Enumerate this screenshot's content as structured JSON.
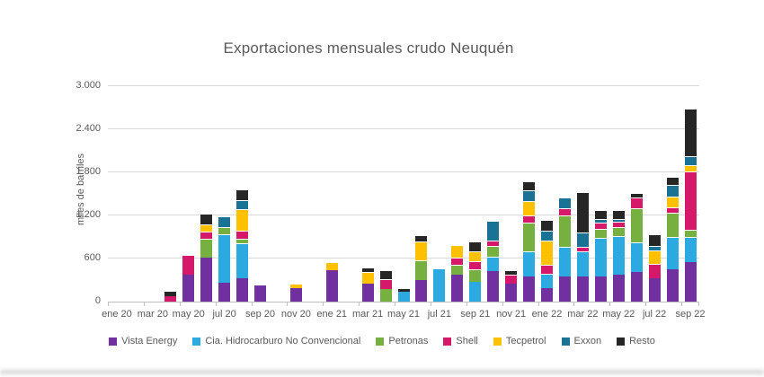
{
  "title": "Exportaciones mensuales crudo Neuquén",
  "colors": {
    "grid": "#d9d9d9",
    "axis": "#bfbfbf",
    "text": "#595959"
  },
  "chart_data": {
    "type": "bar",
    "subtype": "stacked",
    "title": "Exportaciones mensuales crudo Neuquén",
    "xlabel": "",
    "ylabel": "miles de barriles",
    "ylim": [
      0,
      3000
    ],
    "ytick_step": 600,
    "ytick_labels": [
      "0",
      "600",
      "1.200",
      "1.800",
      "2.400",
      "3.000"
    ],
    "grid": true,
    "legend_position": "bottom",
    "x_label_every": 2,
    "categories": [
      "ene 20",
      "feb 20",
      "mar 20",
      "abr 20",
      "may 20",
      "jun 20",
      "jul 20",
      "ago 20",
      "sep 20",
      "oct 20",
      "nov 20",
      "dic 20",
      "ene 21",
      "feb 21",
      "mar 21",
      "abr 21",
      "may 21",
      "jun 21",
      "jul 21",
      "ago 21",
      "sep 21",
      "oct 21",
      "nov 21",
      "dic 21",
      "ene 22",
      "feb 22",
      "mar 22",
      "abr 22",
      "may 22",
      "jun 22",
      "jul 22",
      "ago 22",
      "sep 22"
    ],
    "series": [
      {
        "name": "Vista Energy",
        "color": "#7030a0",
        "values": [
          0,
          0,
          0,
          0,
          380,
          610,
          260,
          325,
          220,
          0,
          190,
          0,
          440,
          0,
          250,
          0,
          0,
          305,
          0,
          370,
          0,
          430,
          250,
          350,
          185,
          355,
          355,
          355,
          375,
          410,
          330,
          450,
          550
        ]
      },
      {
        "name": "Cia.  Hidrocarburo No Convencional",
        "color": "#2ba9e0",
        "values": [
          0,
          0,
          0,
          0,
          0,
          0,
          680,
          495,
          0,
          0,
          0,
          0,
          0,
          0,
          0,
          0,
          140,
          0,
          445,
          0,
          270,
          190,
          0,
          350,
          205,
          415,
          350,
          540,
          540,
          415,
          0,
          455,
          350
        ]
      },
      {
        "name": "Petronas",
        "color": "#76b041",
        "values": [
          0,
          0,
          0,
          0,
          0,
          270,
          100,
          60,
          0,
          0,
          0,
          0,
          0,
          0,
          0,
          170,
          0,
          270,
          0,
          145,
          185,
          160,
          0,
          395,
          0,
          435,
          0,
          125,
          125,
          475,
          0,
          330,
          100
        ]
      },
      {
        "name": "Shell",
        "color": "#d6186b",
        "values": [
          0,
          0,
          0,
          80,
          275,
          100,
          0,
          105,
          0,
          0,
          0,
          0,
          0,
          0,
          0,
          145,
          0,
          0,
          0,
          95,
          105,
          70,
          120,
          105,
          125,
          105,
          60,
          85,
          75,
          150,
          200,
          85,
          820
        ]
      },
      {
        "name": "Tecpetrol",
        "color": "#ffc000",
        "values": [
          0,
          0,
          0,
          0,
          0,
          105,
          0,
          310,
          0,
          0,
          60,
          0,
          105,
          0,
          165,
          0,
          0,
          270,
          0,
          175,
          145,
          0,
          0,
          205,
          330,
          0,
          0,
          0,
          0,
          0,
          185,
          145,
          85
        ]
      },
      {
        "name": "Exxon",
        "color": "#1a7295",
        "values": [
          0,
          0,
          0,
          0,
          0,
          0,
          145,
          125,
          0,
          0,
          0,
          0,
          0,
          0,
          0,
          0,
          0,
          0,
          0,
          0,
          0,
          270,
          0,
          145,
          145,
          145,
          205,
          45,
          40,
          0,
          60,
          165,
          125
        ]
      },
      {
        "name": "Resto",
        "color": "#262626",
        "values": [
          0,
          0,
          0,
          65,
          0,
          145,
          0,
          145,
          0,
          0,
          0,
          0,
          0,
          0,
          60,
          125,
          50,
          85,
          0,
          0,
          130,
          0,
          65,
          125,
          145,
          0,
          560,
          130,
          115,
          65,
          165,
          110,
          660
        ]
      }
    ]
  }
}
